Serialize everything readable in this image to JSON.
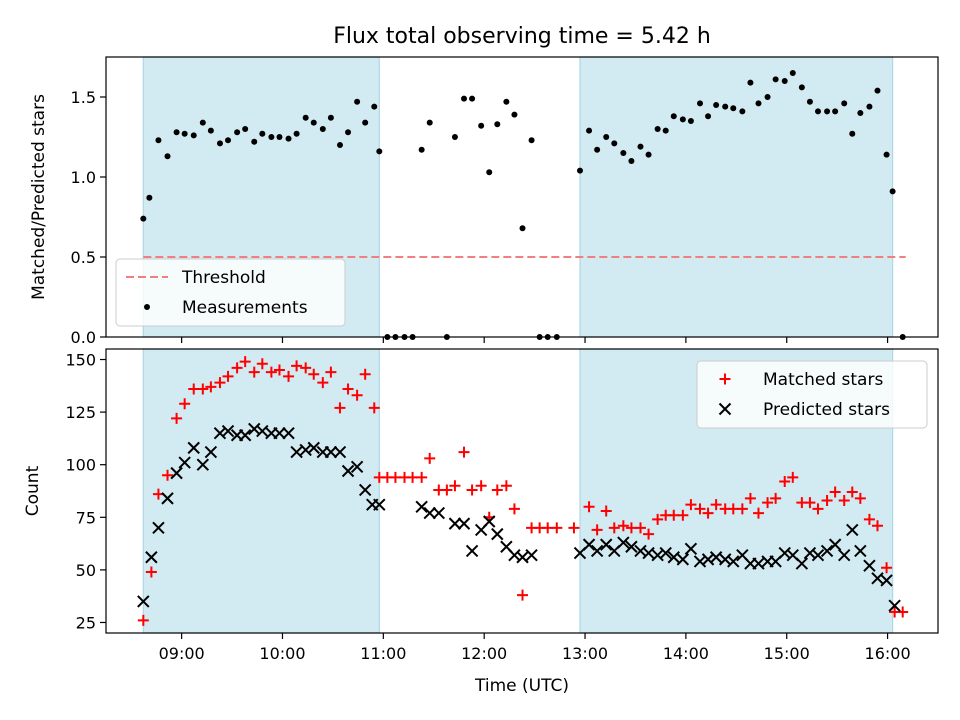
{
  "chart_data": [
    {
      "type": "scatter",
      "title": "Flux total observing time = 5.42 h",
      "xlabel": "",
      "ylabel": "Matched/Predicted stars",
      "xlim": [
        8.25,
        16.5
      ],
      "ylim": [
        0,
        1.75
      ],
      "x_tick_labels_shown": false,
      "y_ticks": [
        0.0,
        0.5,
        1.0,
        1.5
      ],
      "y_tick_labels": [
        "0.0",
        "0.5",
        "1.0",
        "1.5"
      ],
      "legend": {
        "position": "lower-left",
        "entries": [
          "Threshold",
          "Measurements"
        ]
      },
      "shaded_intervals": [
        [
          8.62,
          10.96
        ],
        [
          12.95,
          16.05
        ]
      ],
      "shade_color": "#add8e6",
      "threshold": {
        "name": "Threshold",
        "value": 0.5,
        "x_range": [
          8.62,
          16.18
        ],
        "color": "#f08080",
        "style": "dashed"
      },
      "series": [
        {
          "name": "Measurements",
          "marker": "dot",
          "color": "#000000",
          "x": [
            8.62,
            8.68,
            8.77,
            8.86,
            8.95,
            9.03,
            9.12,
            9.21,
            9.29,
            9.38,
            9.46,
            9.55,
            9.63,
            9.72,
            9.8,
            9.89,
            9.97,
            10.06,
            10.14,
            10.23,
            10.31,
            10.4,
            10.48,
            10.57,
            10.65,
            10.74,
            10.82,
            10.91,
            10.96,
            11.04,
            11.12,
            11.21,
            11.29,
            11.38,
            11.46,
            11.63,
            11.71,
            11.8,
            11.88,
            11.97,
            12.05,
            12.13,
            12.22,
            12.3,
            12.38,
            12.47,
            12.55,
            12.63,
            12.72,
            12.95,
            13.04,
            13.12,
            13.21,
            13.29,
            13.38,
            13.46,
            13.55,
            13.63,
            13.72,
            13.8,
            13.88,
            13.97,
            14.05,
            14.14,
            14.22,
            14.3,
            14.39,
            14.47,
            14.56,
            14.64,
            14.72,
            14.81,
            14.89,
            14.98,
            15.06,
            15.15,
            15.23,
            15.31,
            15.4,
            15.48,
            15.57,
            15.65,
            15.73,
            15.82,
            15.9,
            15.99,
            16.05,
            16.15
          ],
          "y": [
            0.74,
            0.87,
            1.23,
            1.13,
            1.28,
            1.27,
            1.26,
            1.34,
            1.29,
            1.21,
            1.23,
            1.28,
            1.3,
            1.22,
            1.27,
            1.25,
            1.25,
            1.24,
            1.27,
            1.37,
            1.34,
            1.3,
            1.37,
            1.2,
            1.28,
            1.47,
            1.34,
            1.44,
            1.16,
            0.0,
            0.0,
            0.0,
            0.0,
            1.17,
            1.34,
            0.0,
            1.25,
            1.49,
            1.49,
            1.32,
            1.03,
            1.33,
            1.47,
            1.39,
            0.68,
            1.23,
            0.0,
            0.0,
            0.0,
            1.04,
            1.29,
            1.17,
            1.25,
            1.21,
            1.15,
            1.1,
            1.19,
            1.14,
            1.3,
            1.29,
            1.38,
            1.36,
            1.35,
            1.46,
            1.38,
            1.45,
            1.44,
            1.43,
            1.41,
            1.59,
            1.46,
            1.5,
            1.61,
            1.6,
            1.65,
            1.56,
            1.47,
            1.41,
            1.41,
            1.41,
            1.46,
            1.27,
            1.4,
            1.44,
            1.54,
            1.14,
            0.91,
            0.0
          ]
        }
      ]
    },
    {
      "type": "scatter",
      "title": "",
      "xlabel": "Time (UTC)",
      "ylabel": "Count",
      "xlim": [
        8.25,
        16.5
      ],
      "ylim": [
        20,
        155
      ],
      "x_ticks": [
        9,
        10,
        11,
        12,
        13,
        14,
        15,
        16
      ],
      "x_tick_labels": [
        "09:00",
        "10:00",
        "11:00",
        "12:00",
        "13:00",
        "14:00",
        "15:00",
        "16:00"
      ],
      "y_ticks": [
        25,
        50,
        75,
        100,
        125,
        150
      ],
      "y_tick_labels": [
        "25",
        "50",
        "75",
        "100",
        "125",
        "150"
      ],
      "legend": {
        "position": "top-right",
        "entries": [
          "Matched stars",
          "Predicted stars"
        ]
      },
      "shaded_intervals": [
        [
          8.62,
          10.96
        ],
        [
          12.95,
          16.05
        ]
      ],
      "shade_color": "#add8e6",
      "series": [
        {
          "name": "Matched stars",
          "marker": "plus",
          "color": "#ff0000",
          "x": [
            8.62,
            8.7,
            8.77,
            8.86,
            8.95,
            9.03,
            9.12,
            9.21,
            9.29,
            9.38,
            9.46,
            9.55,
            9.63,
            9.72,
            9.8,
            9.89,
            9.97,
            10.06,
            10.14,
            10.23,
            10.31,
            10.4,
            10.48,
            10.57,
            10.65,
            10.74,
            10.82,
            10.91,
            10.96,
            11.04,
            11.12,
            11.21,
            11.29,
            11.38,
            11.46,
            11.55,
            11.63,
            11.71,
            11.8,
            11.88,
            11.97,
            12.05,
            12.13,
            12.22,
            12.3,
            12.38,
            12.47,
            12.55,
            12.63,
            12.72,
            12.89,
            13.04,
            13.12,
            13.21,
            13.29,
            13.38,
            13.46,
            13.55,
            13.63,
            13.72,
            13.8,
            13.88,
            13.97,
            14.05,
            14.14,
            14.22,
            14.3,
            14.39,
            14.47,
            14.56,
            14.64,
            14.72,
            14.81,
            14.89,
            14.98,
            15.06,
            15.15,
            15.23,
            15.31,
            15.4,
            15.48,
            15.57,
            15.65,
            15.73,
            15.82,
            15.9,
            15.99,
            16.07,
            16.15
          ],
          "y": [
            26,
            49,
            86,
            95,
            122,
            129,
            136,
            136,
            137,
            139,
            142,
            146,
            149,
            144,
            148,
            144,
            145,
            142,
            147,
            146,
            143,
            139,
            144,
            127,
            136,
            133,
            143,
            127,
            94,
            94,
            94,
            94,
            94,
            94,
            103,
            88,
            88,
            90,
            106,
            88,
            90,
            75,
            88,
            90,
            79,
            38,
            70,
            70,
            70,
            70,
            70,
            80,
            69,
            78,
            70,
            71,
            70,
            70,
            67,
            74,
            76,
            76,
            76,
            81,
            79,
            77,
            81,
            79,
            79,
            79,
            84,
            77,
            82,
            84,
            92,
            94,
            82,
            82,
            79,
            83,
            87,
            83,
            87,
            84,
            74,
            71,
            51,
            30,
            30
          ]
        },
        {
          "name": "Predicted stars",
          "marker": "x",
          "color": "#000000",
          "x": [
            8.62,
            8.7,
            8.77,
            8.86,
            8.95,
            9.03,
            9.12,
            9.21,
            9.29,
            9.38,
            9.46,
            9.55,
            9.63,
            9.72,
            9.8,
            9.89,
            9.97,
            10.06,
            10.14,
            10.23,
            10.31,
            10.4,
            10.48,
            10.57,
            10.65,
            10.74,
            10.82,
            10.89,
            10.96,
            11.38,
            11.46,
            11.55,
            11.71,
            11.8,
            11.88,
            11.97,
            12.05,
            12.13,
            12.22,
            12.3,
            12.38,
            12.47,
            12.95,
            13.04,
            13.12,
            13.21,
            13.29,
            13.38,
            13.46,
            13.55,
            13.63,
            13.72,
            13.8,
            13.88,
            13.97,
            14.05,
            14.14,
            14.22,
            14.3,
            14.39,
            14.47,
            14.56,
            14.64,
            14.72,
            14.81,
            14.89,
            14.98,
            15.06,
            15.15,
            15.23,
            15.31,
            15.4,
            15.48,
            15.57,
            15.65,
            15.73,
            15.82,
            15.9,
            15.99,
            16.07
          ],
          "y": [
            35,
            56,
            70,
            84,
            96,
            101,
            108,
            100,
            106,
            115,
            116,
            114,
            114,
            117,
            116,
            115,
            115,
            115,
            106,
            107,
            108,
            106,
            106,
            106,
            97,
            99,
            88,
            81,
            81,
            80,
            77,
            77,
            72,
            72,
            59,
            69,
            73,
            67,
            61,
            57,
            56,
            57,
            58,
            62,
            59,
            62,
            59,
            63,
            61,
            59,
            58,
            57,
            58,
            56,
            55,
            60,
            54,
            55,
            56,
            55,
            54,
            57,
            53,
            53,
            54,
            54,
            58,
            57,
            53,
            58,
            57,
            59,
            62,
            57,
            69,
            59,
            52,
            46,
            45,
            33
          ]
        }
      ]
    }
  ]
}
